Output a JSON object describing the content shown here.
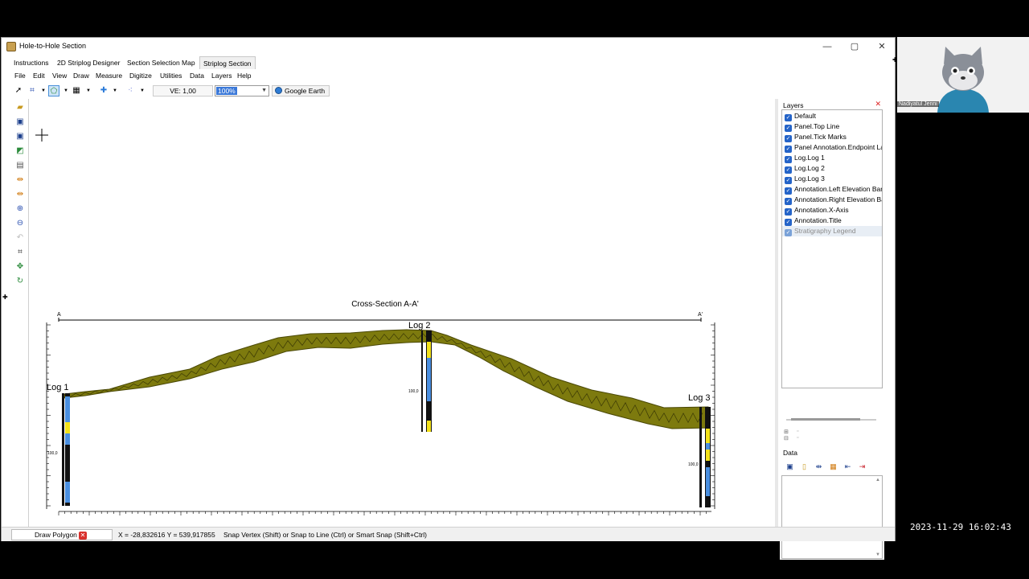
{
  "window": {
    "title": "Hole-to-Hole Section",
    "controls": {
      "minimize": "—",
      "maximize": "▢",
      "close": "✕"
    }
  },
  "tabs": [
    "Instructions",
    "2D Striplog Designer",
    "Section Selection Map",
    "Striplog Section"
  ],
  "active_tab": "Striplog Section",
  "menu": [
    "File",
    "Edit",
    "View",
    "Draw",
    "Measure",
    "Digitize",
    "Utilities",
    "Data",
    "Layers",
    "Help"
  ],
  "toolbar": {
    "ve_label": "VE: 1,00",
    "zoom_value": "100%",
    "google_earth_label": "Google Earth"
  },
  "section": {
    "title": "Cross-Section A-A'",
    "endpoint_left": "A",
    "endpoint_right": "A'",
    "log1_label": "Log 1",
    "log2_label": "Log 2",
    "log3_label": "Log 3",
    "log1_depth_label": "100,0",
    "log2_depth_label": "100,0",
    "log3_depth_label": "100,0",
    "colors": {
      "stratum_fill": "#7d7a0e",
      "stratum_stroke": "#4a4806",
      "log_blue": "#4a8fe0",
      "log_yellow": "#f3e21a",
      "log_black": "#111111"
    }
  },
  "layers_panel": {
    "title": "Layers",
    "items": [
      "Default",
      "Panel.Top Line",
      "Panel.Tick Marks",
      "Panel Annotation.Endpoint Labels",
      "Log.Log 1",
      "Log.Log 2",
      "Log.Log 3",
      "Annotation.Left Elevation Bar",
      "Annotation.Right Elevation Bar",
      "Annotation.X-Axis",
      "Annotation.Title",
      "Stratigraphy Legend"
    ]
  },
  "data_panel": {
    "title": "Data"
  },
  "status": {
    "mode_label": "Draw Polygon",
    "coords": "X = -28,832616  Y = 539,917855",
    "snap_hint": "Snap Vertex (Shift) or Snap to Line (Ctrl) or Smart Snap (Shift+Ctrl)"
  },
  "webcam": {
    "name": "Nadiyatul Jenni"
  },
  "timestamp": "2023-11-29 16:02:43"
}
